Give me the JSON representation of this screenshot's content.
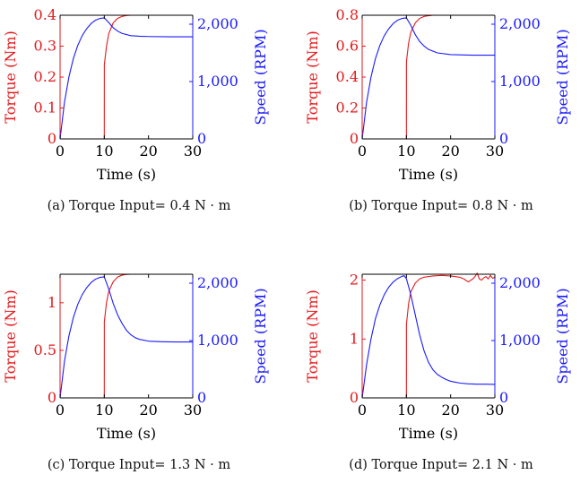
{
  "colors": {
    "torque": "#e31a1c",
    "speed": "#1a1aff",
    "axis": "#000000"
  },
  "chart_data": [
    {
      "type": "line",
      "caption": "(a) Torque Input= 0.4 N · m",
      "xlabel": "Time (s)",
      "ylabel_left": "Torque (Nm)",
      "ylabel_right": "Speed (RPM)",
      "xlim": [
        0,
        30
      ],
      "ylim_left": [
        0,
        0.4
      ],
      "ylim_right": [
        0,
        2000
      ],
      "x_ticks": [
        "0",
        "10",
        "20",
        "30"
      ],
      "y_left_ticks": [
        "0",
        "0.1",
        "0.2",
        "0.3",
        "0.4"
      ],
      "y_right_ticks": [
        "0",
        "1,000",
        "2,000"
      ],
      "torque_input": 0.4,
      "series": [
        {
          "axis": "left",
          "style": "dashed",
          "color": "#e31a1c",
          "x": [
            0,
            30
          ],
          "y": [
            0.4,
            0.4
          ]
        },
        {
          "axis": "left",
          "style": "solid",
          "color": "#e31a1c",
          "x": [
            0,
            10,
            10.01,
            10.5,
            11,
            12,
            13,
            14,
            15,
            16,
            30
          ],
          "y": [
            0,
            0,
            0.24,
            0.3,
            0.34,
            0.375,
            0.39,
            0.396,
            0.399,
            0.4,
            0.4
          ]
        },
        {
          "axis": "right",
          "style": "solid",
          "color": "#1a1aff",
          "x": [
            0,
            1,
            2,
            3,
            4,
            5,
            6,
            7,
            8,
            9,
            10,
            11,
            12,
            13,
            14,
            16,
            18,
            20,
            25,
            30
          ],
          "y": [
            0,
            640,
            1080,
            1400,
            1630,
            1800,
            1920,
            2010,
            2070,
            2100,
            2110,
            2030,
            1940,
            1880,
            1840,
            1800,
            1790,
            1785,
            1780,
            1780
          ]
        }
      ]
    },
    {
      "type": "line",
      "caption": "(b) Torque Input= 0.8 N · m",
      "xlabel": "Time (s)",
      "ylabel_left": "Torque (Nm)",
      "ylabel_right": "Speed (RPM)",
      "xlim": [
        0,
        30
      ],
      "ylim_left": [
        0,
        0.8
      ],
      "ylim_right": [
        0,
        2000
      ],
      "x_ticks": [
        "0",
        "10",
        "20",
        "30"
      ],
      "y_left_ticks": [
        "0",
        "0.2",
        "0.4",
        "0.6",
        "0.8"
      ],
      "y_right_ticks": [
        "0",
        "1,000",
        "2,000"
      ],
      "torque_input": 0.8,
      "series": [
        {
          "axis": "left",
          "style": "dashed",
          "color": "#e31a1c",
          "x": [
            0,
            30
          ],
          "y": [
            0.8,
            0.8
          ]
        },
        {
          "axis": "left",
          "style": "solid",
          "color": "#e31a1c",
          "x": [
            0,
            10,
            10.01,
            10.5,
            11,
            12,
            13,
            14,
            15,
            16,
            30
          ],
          "y": [
            0,
            0,
            0.5,
            0.62,
            0.69,
            0.75,
            0.78,
            0.792,
            0.797,
            0.8,
            0.8
          ]
        },
        {
          "axis": "right",
          "style": "solid",
          "color": "#1a1aff",
          "x": [
            0,
            1,
            2,
            3,
            4,
            5,
            6,
            7,
            8,
            9,
            10,
            11,
            12,
            13,
            14,
            15,
            17,
            20,
            25,
            30
          ],
          "y": [
            0,
            640,
            1080,
            1400,
            1630,
            1800,
            1920,
            2010,
            2070,
            2100,
            2110,
            1980,
            1820,
            1700,
            1620,
            1560,
            1500,
            1470,
            1460,
            1460
          ]
        }
      ]
    },
    {
      "type": "line",
      "caption": "(c) Torque Input= 1.3 N · m",
      "xlabel": "Time (s)",
      "ylabel_left": "Torque (Nm)",
      "ylabel_right": "Speed (RPM)",
      "xlim": [
        0,
        30
      ],
      "ylim_left": [
        0,
        1.3
      ],
      "ylim_right": [
        0,
        2000
      ],
      "x_ticks": [
        "0",
        "10",
        "20",
        "30"
      ],
      "y_left_ticks": [
        "0",
        "0.5",
        "1"
      ],
      "y_right_ticks": [
        "0",
        "1,000",
        "2,000"
      ],
      "torque_input": 1.3,
      "series": [
        {
          "axis": "left",
          "style": "dashed",
          "color": "#e31a1c",
          "x": [
            0,
            30
          ],
          "y": [
            1.3,
            1.3
          ]
        },
        {
          "axis": "left",
          "style": "solid",
          "color": "#e31a1c",
          "x": [
            0,
            10,
            10.01,
            10.5,
            11,
            12,
            13,
            14,
            15,
            16,
            30
          ],
          "y": [
            0,
            0,
            0.8,
            1.0,
            1.12,
            1.22,
            1.27,
            1.29,
            1.298,
            1.3,
            1.3
          ]
        },
        {
          "axis": "right",
          "style": "solid",
          "color": "#1a1aff",
          "x": [
            0,
            1,
            2,
            3,
            4,
            5,
            6,
            7,
            8,
            9,
            10,
            11,
            12,
            13,
            14,
            15,
            16,
            17,
            18,
            20,
            23,
            26,
            30
          ],
          "y": [
            0,
            640,
            1080,
            1400,
            1630,
            1800,
            1920,
            2010,
            2070,
            2100,
            2110,
            1900,
            1650,
            1450,
            1300,
            1180,
            1100,
            1050,
            1020,
            990,
            980,
            975,
            975
          ]
        }
      ]
    },
    {
      "type": "line",
      "caption": "(d) Torque Input= 2.1 N · m",
      "xlabel": "Time (s)",
      "ylabel_left": "Torque (Nm)",
      "ylabel_right": "Speed (RPM)",
      "xlim": [
        0,
        30
      ],
      "ylim_left": [
        0,
        2.1
      ],
      "ylim_right": [
        0,
        2000
      ],
      "x_ticks": [
        "0",
        "10",
        "20",
        "30"
      ],
      "y_left_ticks": [
        "0",
        "1",
        "2"
      ],
      "y_right_ticks": [
        "0",
        "1,000",
        "2,000"
      ],
      "torque_input": 2.1,
      "series": [
        {
          "axis": "left",
          "style": "dashed",
          "color": "#e31a1c",
          "x": [
            0,
            30
          ],
          "y": [
            2.1,
            2.1
          ]
        },
        {
          "axis": "left",
          "style": "solid",
          "color": "#e31a1c",
          "x": [
            0,
            10,
            10.01,
            10.5,
            11,
            12,
            13,
            14,
            15,
            16,
            18,
            20,
            22,
            23,
            24,
            25,
            25.5,
            26,
            26.5,
            27,
            27.5,
            28,
            28.5,
            29,
            29.5,
            30
          ],
          "y": [
            0,
            0,
            1.25,
            1.6,
            1.8,
            1.95,
            2.02,
            2.05,
            2.06,
            2.07,
            2.08,
            2.07,
            2.05,
            2.02,
            1.97,
            2.02,
            2.06,
            2.12,
            2.02,
            2.0,
            2.04,
            2.06,
            2.02,
            2.08,
            2.03,
            2.05
          ]
        },
        {
          "axis": "right",
          "style": "solid",
          "color": "#1a1aff",
          "x": [
            0,
            1,
            2,
            3,
            4,
            5,
            6,
            7,
            8,
            9,
            9.5,
            10,
            11,
            12,
            13,
            14,
            15,
            16,
            17,
            18,
            19,
            20,
            22,
            24,
            26,
            28,
            30
          ],
          "y": [
            0,
            580,
            1030,
            1380,
            1620,
            1800,
            1930,
            2020,
            2080,
            2120,
            2130,
            2080,
            1800,
            1450,
            1100,
            820,
            620,
            490,
            410,
            360,
            320,
            290,
            260,
            245,
            240,
            240,
            235
          ]
        }
      ]
    }
  ]
}
